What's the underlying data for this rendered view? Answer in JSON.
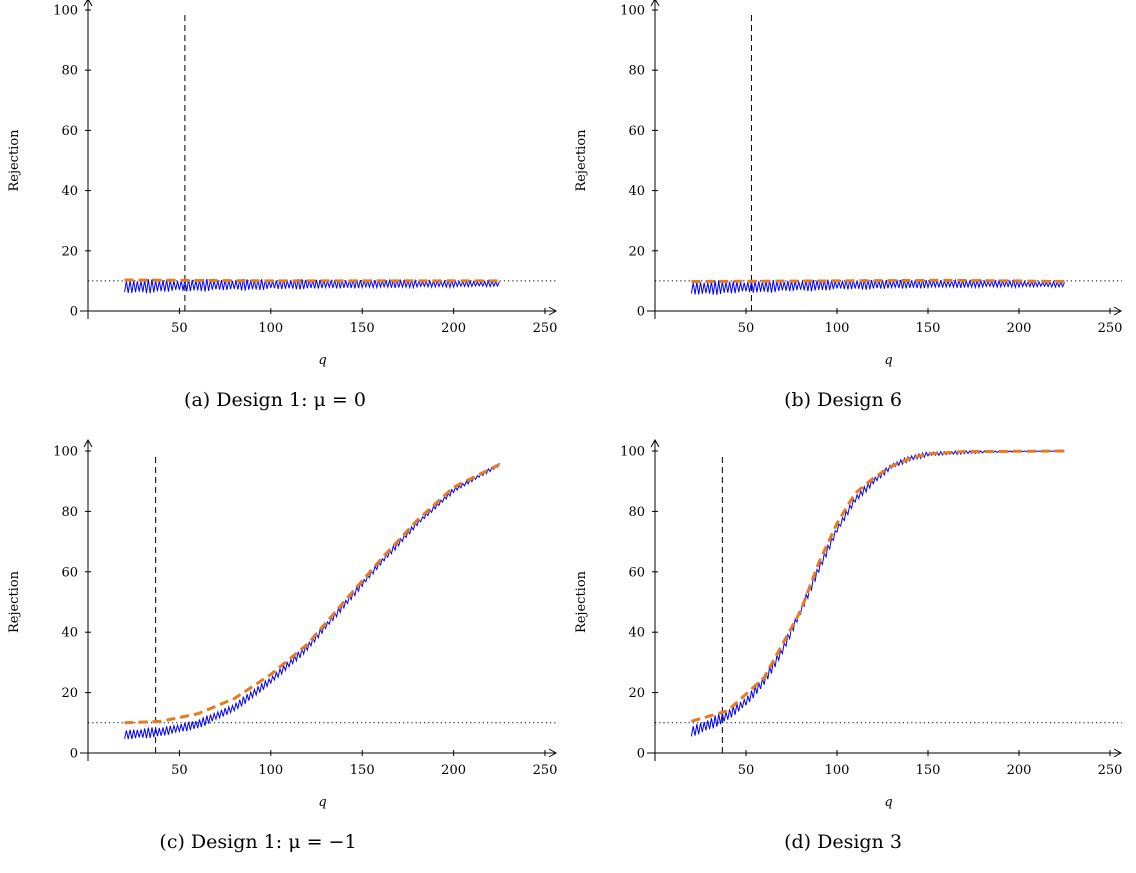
{
  "chart_data": [
    {
      "type": "line",
      "caption": "(a) Design 1: μ = 0",
      "xlabel": "q",
      "ylabel": "Rejection",
      "xlim": [
        0,
        250
      ],
      "ylim": [
        0,
        100
      ],
      "xticks": [
        0,
        50,
        100,
        150,
        200,
        250
      ],
      "yticks": [
        0,
        20,
        40,
        60,
        80,
        100
      ],
      "vline_x": 53,
      "hline_y": 10,
      "series": [
        {
          "style": "blue solid zigzag",
          "x_range": [
            20,
            225
          ],
          "points": [
            [
              20,
              8
            ],
            [
              50,
              8.5
            ],
            [
              100,
              8.8
            ],
            [
              150,
              9
            ],
            [
              200,
              9
            ],
            [
              225,
              9
            ]
          ],
          "amplitude_start": 4,
          "amplitude_end": 1.5,
          "color": "#0000ff"
        },
        {
          "style": "orange thick dashed",
          "x_range": [
            20,
            225
          ],
          "points": [
            [
              20,
              10.3
            ],
            [
              100,
              10
            ],
            [
              225,
              10
            ]
          ],
          "color": "#e87a1e"
        }
      ]
    },
    {
      "type": "line",
      "caption": "(b) Design 6",
      "xlabel": "q",
      "ylabel": "Rejection",
      "xlim": [
        0,
        250
      ],
      "ylim": [
        0,
        100
      ],
      "xticks": [
        0,
        50,
        100,
        150,
        200,
        250
      ],
      "yticks": [
        0,
        20,
        40,
        60,
        80,
        100
      ],
      "vline_x": 53,
      "hline_y": 10,
      "series": [
        {
          "style": "blue solid zigzag",
          "x_range": [
            20,
            225
          ],
          "points": [
            [
              20,
              7.5
            ],
            [
              50,
              8
            ],
            [
              100,
              8.7
            ],
            [
              150,
              9
            ],
            [
              200,
              9
            ],
            [
              225,
              8.8
            ]
          ],
          "amplitude_start": 4,
          "amplitude_end": 1.5,
          "color": "#0000ff"
        },
        {
          "style": "orange thick dashed",
          "x_range": [
            20,
            225
          ],
          "points": [
            [
              20,
              9.8
            ],
            [
              100,
              10
            ],
            [
              160,
              10.2
            ],
            [
              225,
              9.8
            ]
          ],
          "color": "#e87a1e"
        }
      ]
    },
    {
      "type": "line",
      "caption": "(c) Design 1: μ = −1",
      "xlabel": "q",
      "ylabel": "Rejection",
      "xlim": [
        0,
        250
      ],
      "ylim": [
        0,
        100
      ],
      "xticks": [
        0,
        50,
        100,
        150,
        200,
        250
      ],
      "yticks": [
        0,
        20,
        40,
        60,
        80,
        100
      ],
      "vline_x": 37,
      "hline_y": 10,
      "series": [
        {
          "style": "blue solid zigzag",
          "x_range": [
            20,
            225
          ],
          "points": [
            [
              20,
              6
            ],
            [
              40,
              7
            ],
            [
              60,
              9.5
            ],
            [
              80,
              15
            ],
            [
              100,
              24
            ],
            [
              120,
              35
            ],
            [
              140,
              49
            ],
            [
              160,
              63
            ],
            [
              180,
              76
            ],
            [
              200,
              87
            ],
            [
              225,
              95.5
            ]
          ],
          "amplitude_start": 3,
          "amplitude_end": 1,
          "color": "#0000ff"
        },
        {
          "style": "orange thick dashed",
          "x_range": [
            20,
            225
          ],
          "points": [
            [
              20,
              10
            ],
            [
              40,
              10.5
            ],
            [
              60,
              13
            ],
            [
              80,
              18
            ],
            [
              100,
              26
            ],
            [
              120,
              36
            ],
            [
              140,
              50
            ],
            [
              160,
              64
            ],
            [
              180,
              77
            ],
            [
              200,
              88
            ],
            [
              225,
              95.5
            ]
          ],
          "color": "#e87a1e"
        }
      ]
    },
    {
      "type": "line",
      "caption": "(d) Design 3",
      "xlabel": "q",
      "ylabel": "Rejection",
      "xlim": [
        0,
        250
      ],
      "ylim": [
        0,
        100
      ],
      "xticks": [
        0,
        50,
        100,
        150,
        200,
        250
      ],
      "yticks": [
        0,
        20,
        40,
        60,
        80,
        100
      ],
      "vline_x": 37,
      "hline_y": 10,
      "series": [
        {
          "style": "blue solid zigzag",
          "x_range": [
            20,
            225
          ],
          "points": [
            [
              20,
              7
            ],
            [
              30,
              9.5
            ],
            [
              40,
              12.5
            ],
            [
              50,
              17
            ],
            [
              60,
              24
            ],
            [
              70,
              34
            ],
            [
              80,
              47
            ],
            [
              90,
              61
            ],
            [
              100,
              74
            ],
            [
              110,
              84
            ],
            [
              120,
              90
            ],
            [
              130,
              95
            ],
            [
              140,
              97.5
            ],
            [
              150,
              99
            ],
            [
              170,
              99.6
            ],
            [
              200,
              100
            ],
            [
              225,
              100
            ]
          ],
          "amplitude_start": 3.5,
          "amplitude_end": 0,
          "color": "#0000ff"
        },
        {
          "style": "orange thick dashed",
          "x_range": [
            20,
            225
          ],
          "points": [
            [
              20,
              10.5
            ],
            [
              40,
              14
            ],
            [
              60,
              25
            ],
            [
              80,
              47
            ],
            [
              90,
              63
            ],
            [
              100,
              76
            ],
            [
              110,
              86
            ],
            [
              120,
              91
            ],
            [
              130,
              95
            ],
            [
              140,
              97.5
            ],
            [
              150,
              99
            ],
            [
              170,
              99.8
            ],
            [
              225,
              100
            ]
          ],
          "color": "#e87a1e"
        }
      ]
    }
  ]
}
